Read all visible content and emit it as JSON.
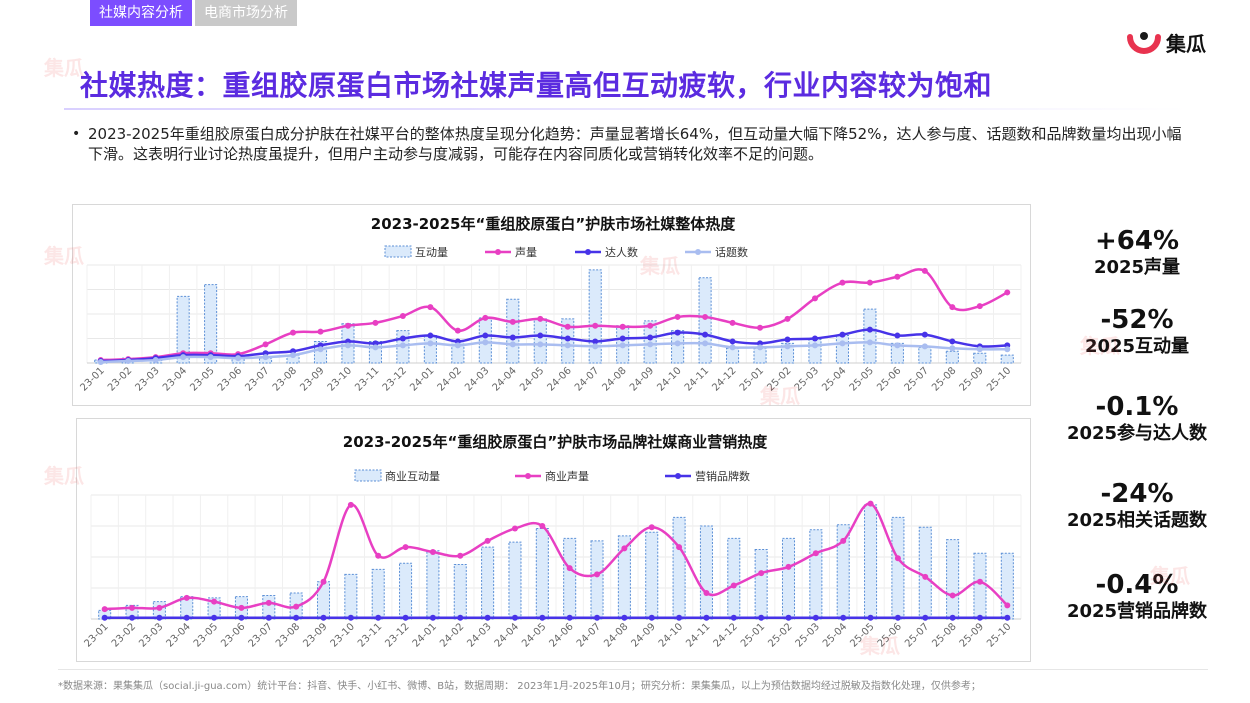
{
  "tabs": [
    {
      "label": "社媒内容分析",
      "active": true
    },
    {
      "label": "电商市场分析",
      "active": false
    }
  ],
  "logo": {
    "text": "集瓜",
    "icon": "ji-gua-logo-icon"
  },
  "title": "社媒热度：重组胶原蛋白市场社媒声量高但互动疲软，行业内容较为饱和",
  "summary": "2023-2025年重组胶原蛋白成分护肤在社媒平台的整体热度呈现分化趋势：声量显著增长64%，但互动量大幅下降52%，达人参与度、话题数和品牌数量均出现小幅下滑。这表明行业讨论热度虽提升，但用户主动参与度减弱，可能存在内容同质化或营销转化效率不足的问题。",
  "stats": [
    {
      "value": "+64%",
      "label": "2025声量"
    },
    {
      "value": "-52%",
      "label": "2025互动量"
    },
    {
      "value": "-0.1%",
      "label": "2025参与达人数"
    },
    {
      "value": "-24%",
      "label": "2025相关话题数"
    },
    {
      "value": "-0.4%",
      "label": "2025营销品牌数"
    }
  ],
  "footer": "*数据来源：果集集瓜（social.ji-gua.com）统计平台：抖音、快手、小红书、微博、B站，数据周期： 2023年1月-2025年10月；研究分析：果集集瓜，以上为预估数据均经过脱敏及指数化处理，仅供参考；",
  "watermark": "集瓜",
  "colors": {
    "accent": "#7c4dff",
    "title": "#5b2be0",
    "bar_fill": "#dbeafb",
    "bar_stroke": "#5b8fd6",
    "pink": "#e83fc3",
    "blue": "#4733e8",
    "light_blue": "#a9bdf0"
  },
  "chart_data": [
    {
      "type": "bar",
      "title": "2023-2025年“重组胶原蛋白”护肤市场社媒整体热度",
      "categories": [
        "23-01",
        "23-02",
        "23-03",
        "23-04",
        "23-05",
        "23-06",
        "23-07",
        "23-08",
        "23-09",
        "23-10",
        "23-11",
        "23-12",
        "24-01",
        "24-02",
        "24-03",
        "24-04",
        "24-05",
        "24-06",
        "24-07",
        "24-08",
        "24-09",
        "24-10",
        "24-11",
        "24-12",
        "25-01",
        "25-02",
        "25-03",
        "25-04",
        "25-05",
        "25-06",
        "25-07",
        "25-08",
        "25-09",
        "25-10"
      ],
      "legend": "top-center",
      "grid": true,
      "ylim": [
        0,
        100
      ],
      "series": [
        {
          "name": "互动量",
          "kind": "bar",
          "values": [
            3,
            5,
            6,
            68,
            80,
            6,
            5,
            8,
            22,
            40,
            22,
            33,
            28,
            22,
            46,
            65,
            45,
            45,
            95,
            38,
            43,
            33,
            87,
            15,
            15,
            20,
            24,
            28,
            55,
            20,
            16,
            12,
            10,
            8
          ]
        },
        {
          "name": "声量",
          "kind": "line",
          "values": [
            3,
            4,
            6,
            10,
            10,
            9,
            19,
            31,
            32,
            38,
            41,
            48,
            57,
            33,
            46,
            42,
            45,
            37,
            38,
            37,
            38,
            47,
            47,
            41,
            36,
            45,
            66,
            82,
            82,
            88,
            94,
            57,
            58,
            72
          ]
        },
        {
          "name": "达人数",
          "kind": "line",
          "values": [
            2,
            3,
            5,
            8,
            8,
            7,
            10,
            12,
            18,
            22,
            20,
            25,
            28,
            22,
            28,
            26,
            28,
            25,
            22,
            25,
            26,
            31,
            29,
            22,
            20,
            24,
            25,
            29,
            34,
            28,
            29,
            22,
            17,
            18
          ]
        },
        {
          "name": "话题数",
          "kind": "line",
          "values": [
            1,
            2,
            3,
            6,
            6,
            5,
            6,
            8,
            14,
            18,
            16,
            18,
            20,
            18,
            21,
            19,
            19,
            18,
            17,
            18,
            19,
            20,
            20,
            16,
            16,
            17,
            18,
            20,
            21,
            18,
            17,
            15,
            14,
            14
          ]
        }
      ]
    },
    {
      "type": "bar",
      "title": "2023-2025年“重组胶原蛋白”护肤市场品牌社媒商业营销热度",
      "categories": [
        "23-01",
        "23-02",
        "23-03",
        "23-04",
        "23-05",
        "23-06",
        "23-07",
        "23-08",
        "23-09",
        "23-10",
        "23-11",
        "23-12",
        "24-01",
        "24-02",
        "24-03",
        "24-04",
        "24-05",
        "24-06",
        "24-07",
        "24-08",
        "24-09",
        "24-10",
        "24-11",
        "24-12",
        "25-01",
        "25-02",
        "25-03",
        "25-04",
        "25-05",
        "25-06",
        "25-07",
        "25-08",
        "25-09",
        "25-10"
      ],
      "legend": "top-center",
      "grid": true,
      "ylim": [
        0,
        100
      ],
      "series": [
        {
          "name": "商业互动量",
          "kind": "bar",
          "values": [
            7,
            11,
            14,
            18,
            17,
            18,
            19,
            21,
            30,
            36,
            40,
            45,
            55,
            44,
            58,
            62,
            73,
            65,
            63,
            67,
            70,
            82,
            75,
            65,
            56,
            65,
            72,
            76,
            92,
            82,
            74,
            64,
            53,
            53
          ]
        },
        {
          "name": "商业声量",
          "kind": "line",
          "values": [
            8,
            9,
            9,
            17,
            14,
            9,
            13,
            10,
            30,
            92,
            51,
            58,
            54,
            51,
            63,
            73,
            75,
            41,
            36,
            57,
            74,
            58,
            21,
            27,
            37,
            42,
            53,
            63,
            93,
            49,
            34,
            19,
            30,
            11
          ]
        },
        {
          "name": "营销品牌数",
          "kind": "line",
          "values": [
            1,
            1,
            1,
            1,
            1,
            1,
            1,
            1,
            1,
            1,
            1,
            1,
            1,
            1,
            1,
            1,
            1,
            1,
            1,
            1,
            1,
            1,
            1,
            1,
            1,
            1,
            1,
            1,
            1,
            1,
            1,
            1,
            1,
            1
          ]
        }
      ]
    }
  ]
}
